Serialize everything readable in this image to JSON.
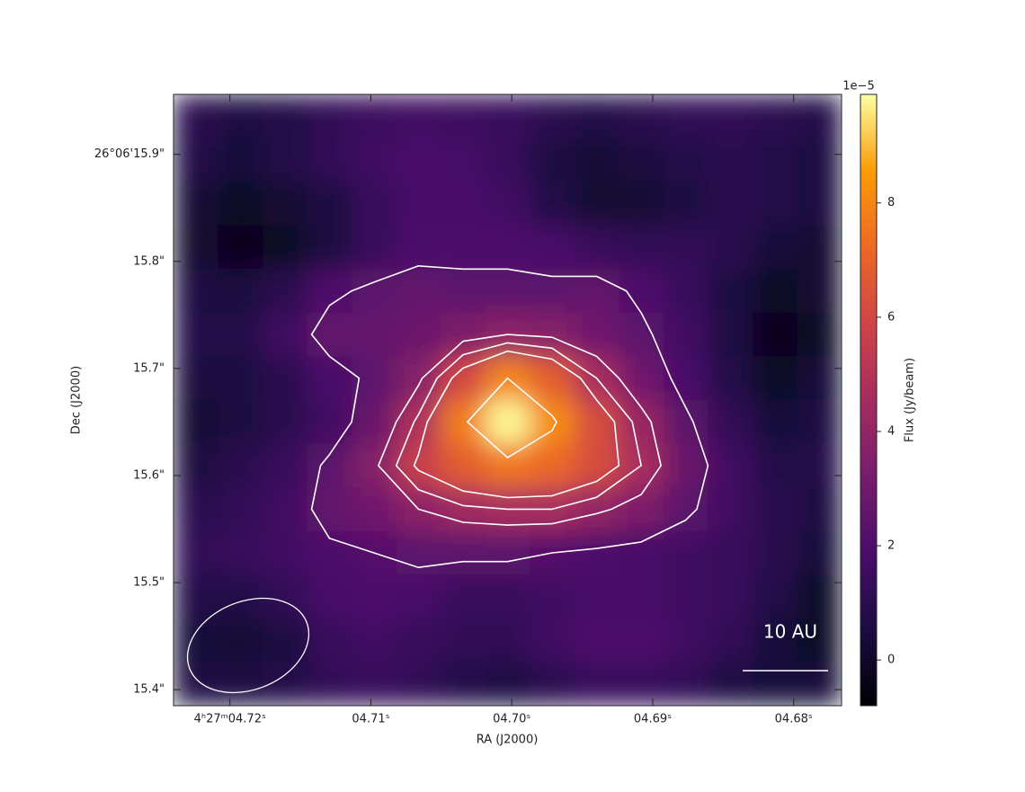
{
  "chart_data": {
    "type": "heatmap",
    "x_label": "RA (J2000)",
    "y_label": "Dec (J2000)",
    "colorbar_label": "Flux (Jy/beam)",
    "colorbar_offset": "1e−5",
    "scalebar_label": "10 AU",
    "xlim": [
      4.724,
      4.6766
    ],
    "xticks": [
      {
        "value": 4.72,
        "label": "4ʰ27ᵐ04.72ˢ"
      },
      {
        "value": 4.71,
        "label": "04.71ˢ"
      },
      {
        "value": 4.7,
        "label": "04.70ˢ"
      },
      {
        "value": 4.69,
        "label": "04.69ˢ"
      },
      {
        "value": 4.68,
        "label": "04.68ˢ"
      }
    ],
    "ylim": [
      15.385,
      15.956
    ],
    "yticks": [
      {
        "value": 15.9,
        "label": "26°06'15.9\""
      },
      {
        "value": 15.8,
        "label": "15.8\""
      },
      {
        "value": 15.7,
        "label": "15.7\""
      },
      {
        "value": 15.6,
        "label": "15.6\""
      },
      {
        "value": 15.5,
        "label": "15.5\""
      },
      {
        "value": 15.4,
        "label": "15.4\""
      }
    ],
    "zlim": [
      -0.8,
      9.9
    ],
    "zticks": [
      0,
      2,
      4,
      6,
      8
    ],
    "colormap": "inferno",
    "contour_color": "#ffffff",
    "contour_levels": [
      2.2,
      3.8,
      4.6,
      5.4,
      8.0
    ],
    "z": [
      [
        1.0,
        0.6,
        0.8,
        1.2,
        1.5,
        1.6,
        1.5,
        1.4,
        1.0,
        0.8,
        1.0,
        1.2,
        1.2,
        1.0,
        0.8
      ],
      [
        0.8,
        0.4,
        0.8,
        1.2,
        1.6,
        1.8,
        1.7,
        1.4,
        0.6,
        0.3,
        0.5,
        0.8,
        1.0,
        0.8,
        0.6
      ],
      [
        0.3,
        0.0,
        0.2,
        0.6,
        1.4,
        1.8,
        1.8,
        1.6,
        0.8,
        0.2,
        0.2,
        0.6,
        1.0,
        0.8,
        0.6
      ],
      [
        0.2,
        -0.2,
        0.0,
        0.6,
        1.4,
        1.9,
        2.0,
        2.0,
        1.8,
        1.4,
        1.2,
        1.2,
        1.0,
        0.4,
        0.2
      ],
      [
        0.6,
        0.5,
        1.0,
        2.0,
        2.4,
        2.6,
        2.4,
        2.4,
        2.4,
        2.6,
        2.0,
        1.4,
        0.6,
        0.0,
        0.2
      ],
      [
        0.8,
        0.8,
        1.6,
        2.6,
        2.6,
        2.8,
        3.4,
        3.8,
        3.6,
        3.0,
        2.4,
        1.6,
        0.6,
        -0.2,
        0.0
      ],
      [
        0.5,
        0.6,
        1.0,
        1.8,
        2.4,
        3.6,
        6.0,
        8.0,
        6.8,
        4.6,
        3.0,
        1.8,
        0.8,
        0.0,
        0.4
      ],
      [
        0.3,
        0.5,
        1.0,
        1.6,
        2.8,
        4.8,
        7.8,
        9.8,
        8.2,
        6.2,
        4.2,
        2.4,
        1.2,
        0.4,
        0.6
      ],
      [
        0.5,
        1.0,
        1.4,
        2.4,
        3.6,
        5.6,
        6.8,
        7.6,
        7.2,
        6.2,
        4.6,
        2.8,
        1.6,
        0.8,
        0.8
      ],
      [
        1.0,
        1.2,
        1.6,
        2.6,
        3.0,
        3.8,
        4.4,
        4.6,
        4.6,
        4.0,
        3.4,
        2.4,
        1.6,
        1.0,
        0.6
      ],
      [
        1.2,
        1.4,
        1.6,
        2.0,
        2.2,
        2.4,
        2.4,
        2.4,
        2.2,
        2.0,
        1.8,
        1.6,
        1.4,
        1.0,
        0.4
      ],
      [
        0.8,
        0.8,
        1.2,
        1.8,
        2.0,
        1.8,
        1.4,
        1.4,
        1.6,
        1.8,
        1.8,
        1.6,
        1.4,
        0.8,
        0.0
      ],
      [
        0.4,
        0.3,
        0.6,
        1.4,
        1.6,
        1.4,
        1.2,
        1.2,
        1.6,
        2.0,
        2.0,
        1.6,
        1.2,
        0.4,
        0.0
      ],
      [
        0.6,
        0.6,
        0.8,
        1.2,
        1.4,
        1.2,
        0.8,
        0.6,
        1.0,
        1.4,
        1.4,
        1.2,
        0.6,
        0.4,
        0.4
      ]
    ]
  }
}
